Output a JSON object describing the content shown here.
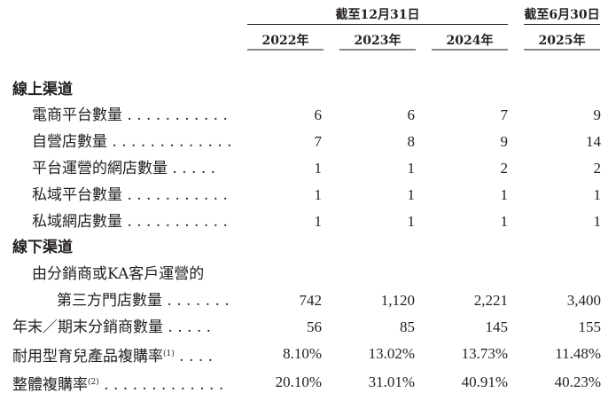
{
  "header": {
    "group_dec": "截至12月31日",
    "group_jun": "截至6月30日",
    "years": [
      "2022年",
      "2023年",
      "2024年",
      "2025年"
    ]
  },
  "sections": {
    "online": "線上渠道",
    "offline": "線下渠道"
  },
  "rows": [
    {
      "label": "電商平台數量",
      "dots": " . . . . . . . . . . .",
      "values": [
        "6",
        "6",
        "7",
        "9"
      ]
    },
    {
      "label": "自營店數量",
      "dots": " . . . . . . . . . . . . .",
      "values": [
        "7",
        "8",
        "9",
        "14"
      ]
    },
    {
      "label": "平台運營的網店數量",
      "dots": " . . . . .",
      "values": [
        "1",
        "1",
        "2",
        "2"
      ]
    },
    {
      "label": "私域平台數量",
      "dots": " . . . . . . . . . . .",
      "values": [
        "1",
        "1",
        "1",
        "1"
      ]
    },
    {
      "label": "私域網店數量",
      "dots": " . . . . . . . . . . .",
      "values": [
        "1",
        "1",
        "1",
        "1"
      ]
    },
    {
      "label": "由分銷商或KA客戶運營的",
      "dots": "",
      "values": [
        "",
        "",
        "",
        ""
      ]
    },
    {
      "label": "第三方門店數量",
      "dots": " . . . . . . .",
      "values": [
        "742",
        "1,120",
        "2,221",
        "3,400"
      ]
    },
    {
      "label": "年末／期末分銷商數量",
      "dots": " . . . . .",
      "values": [
        "56",
        "85",
        "145",
        "155"
      ]
    },
    {
      "label": "耐用型育兒產品複購率",
      "note": "(1)",
      "dots": " . . . .",
      "values": [
        "8.10%",
        "13.02%",
        "13.73%",
        "11.48%"
      ]
    },
    {
      "label": "整體複購率",
      "note": "(2)",
      "dots": " . . . . . . . . . . . . .",
      "values": [
        "20.10%",
        "31.01%",
        "40.91%",
        "40.23%"
      ]
    }
  ]
}
